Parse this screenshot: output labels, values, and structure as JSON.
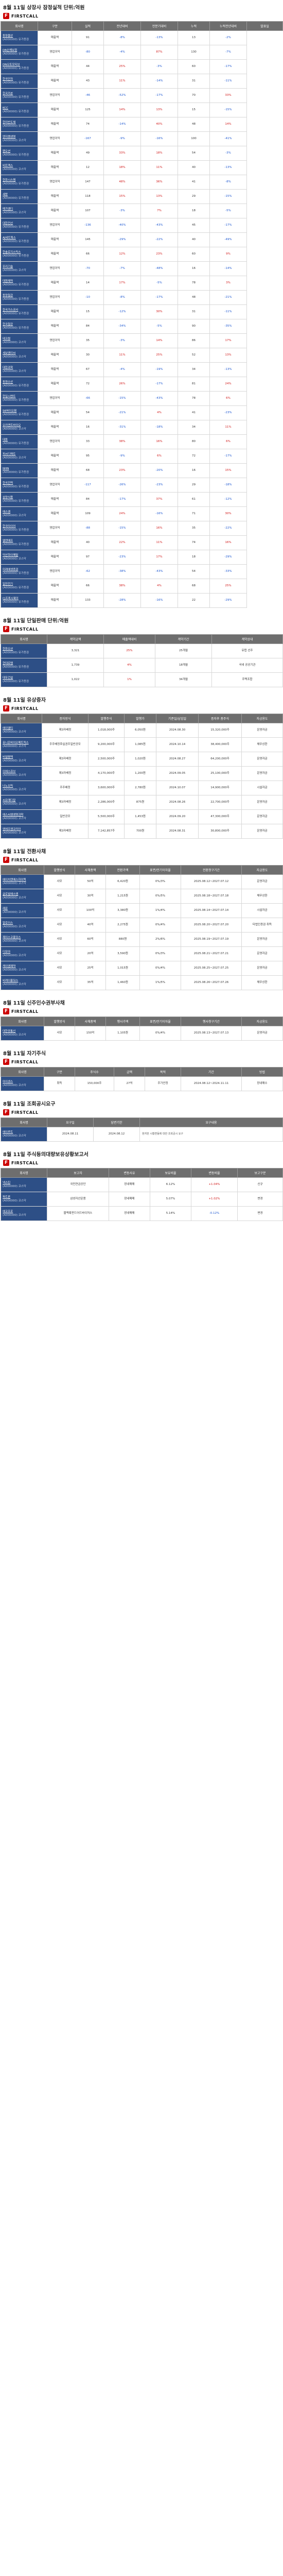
{
  "brand": "FIRSTCALL",
  "sec1": {
    "title": "8월 11일 상장사 잠정실적 단위:억원",
    "headers": [
      "회사명",
      "구분",
      "실적",
      "전년대비",
      "전분기대비",
      "누적",
      "누적전년대비",
      "발표일"
    ],
    "rows": [
      [
        "동양물산",
        "(A000000) 유가증권",
        "매출액",
        "91",
        "-8%",
        "-13%",
        "13",
        "-2%"
      ],
      [
        "DB손해보험",
        "(A000000) 유가증권",
        "영업이익",
        "-80",
        "-4%",
        "87%",
        "130",
        "-7%"
      ],
      [
        "DN오토모티브",
        "(A000000) 유가증권",
        "매출액",
        "44",
        "25%",
        "-3%",
        "60",
        "-17%"
      ],
      [
        "한국단자",
        "(A000000) 유가증권",
        "매출액",
        "43",
        "11%",
        "-14%",
        "31",
        "-11%"
      ],
      [
        "한국카본",
        "(A000000) 유가증권",
        "영업이익",
        "-46",
        "-52%",
        "-17%",
        "70",
        "33%"
      ],
      [
        "KCC",
        "(A000000) 유가증권",
        "매출액",
        "125",
        "14%",
        "13%",
        "15",
        "-15%"
      ],
      [
        "한미반도체",
        "(A000000) 유가증권",
        "매출액",
        "74",
        "-14%",
        "40%",
        "48",
        "14%"
      ],
      [
        "엔지켐생명",
        "(A000000) 코스닥",
        "영업이익",
        "-167",
        "-9%",
        "-16%",
        "100",
        "-41%"
      ],
      [
        "팬오션",
        "(A000000) 유가증권",
        "매출액",
        "49",
        "33%",
        "18%",
        "54",
        "-3%"
      ],
      [
        "비트맥스",
        "(A000000) 코스닥",
        "매출액",
        "12",
        "18%",
        "11%",
        "40",
        "-13%"
      ],
      [
        "한화시스템",
        "(A000000) 유가증권",
        "영업이익",
        "147",
        "48%",
        "36%",
        "41",
        "-8%"
      ],
      [
        "세방",
        "(A000000) 유가증권",
        "매출액",
        "118",
        "15%",
        "13%",
        "29",
        "-15%"
      ],
      [
        "메가엠디",
        "(A000000) 코스닥",
        "매출액",
        "107",
        "-3%",
        "7%",
        "18",
        "-5%"
      ],
      [
        "대한전선",
        "(A000000) 유가증권",
        "영업이익",
        "-136",
        "-40%",
        "-43%",
        "45",
        "-17%"
      ],
      [
        "AJ네트웍스",
        "(A000000) 유가증권",
        "매출액",
        "145",
        "-29%",
        "-22%",
        "40",
        "-49%"
      ],
      [
        "한솔로지스틱스",
        "(A000000) 유가증권",
        "매출액",
        "66",
        "12%",
        "23%",
        "60",
        "9%"
      ],
      [
        "우리기술",
        "(A000000) 코스닥",
        "영업이익",
        "-70",
        "-7%",
        "-48%",
        "16",
        "-14%"
      ],
      [
        "대원제약",
        "(A000000) 유가증권",
        "매출액",
        "14",
        "17%",
        "-5%",
        "78",
        "3%"
      ],
      [
        "동양철관",
        "(A000000) 유가증권",
        "영업이익",
        "-10",
        "-8%",
        "-17%",
        "48",
        "-21%"
      ],
      [
        "한국가스공사",
        "(A000000) 유가증권",
        "매출액",
        "15",
        "-12%",
        "30%",
        "31",
        "-11%"
      ],
      [
        "한국철강",
        "(A000000) 유가증권",
        "매출액",
        "84",
        "-34%",
        "-5%",
        "90",
        "-35%"
      ],
      [
        "테크윙",
        "(A000000) 코스닥",
        "영업이익",
        "35",
        "-3%",
        "14%",
        "86",
        "17%"
      ],
      [
        "세보엠이씨",
        "(A000000) 코스닥",
        "매출액",
        "30",
        "11%",
        "25%",
        "52",
        "13%"
      ],
      [
        "대한과학",
        "(A000000) 코스닥",
        "매출액",
        "67",
        "-4%",
        "-19%",
        "34",
        "-13%"
      ],
      [
        "동원수산",
        "(A000000) 유가증권",
        "매출액",
        "72",
        "26%",
        "-17%",
        "81",
        "24%"
      ],
      [
        "한일시멘트",
        "(A000000) 유가증권",
        "영업이익",
        "-66",
        "-15%",
        "-43%",
        "78",
        "6%"
      ],
      [
        "SK바이오팜",
        "(A000000) 유가증권",
        "매출액",
        "54",
        "-21%",
        "4%",
        "41",
        "-23%"
      ],
      [
        "오리엔트바이오",
        "(A000000) 코스닥",
        "매출액",
        "16",
        "-31%",
        "-18%",
        "34",
        "11%"
      ],
      [
        "대동",
        "(A000000) 유가증권",
        "영업이익",
        "33",
        "38%",
        "16%",
        "80",
        "6%"
      ],
      [
        "피씨디렉트",
        "(A000000) 코스닥",
        "매출액",
        "95",
        "-9%",
        "6%",
        "72",
        "-17%"
      ],
      [
        "NHN",
        "(A000000) 유가증권",
        "매출액",
        "68",
        "23%",
        "-20%",
        "16",
        "15%"
      ],
      [
        "한국전력",
        "(A000000) 유가증권",
        "영업이익",
        "-117",
        "-26%",
        "-23%",
        "29",
        "-18%"
      ],
      [
        "삼양식품",
        "(A000000) 유가증권",
        "매출액",
        "84",
        "-17%",
        "37%",
        "61",
        "-12%"
      ],
      [
        "에스엠",
        "(A000000) 코스닥",
        "매출액",
        "109",
        "24%",
        "-16%",
        "71",
        "30%"
      ],
      [
        "한국타이어",
        "(A000000) 유가증권",
        "영업이익",
        "-88",
        "-15%",
        "16%",
        "35",
        "-22%"
      ],
      [
        "엘앤에프",
        "(A000000) 유가증권",
        "매출액",
        "40",
        "22%",
        "11%",
        "74",
        "16%"
      ],
      [
        "덕산하이메탈",
        "(A000000) 코스닥",
        "매출액",
        "97",
        "-23%",
        "17%",
        "18",
        "-29%"
      ],
      [
        "미래에셋증권",
        "(A000000) 유가증권",
        "영업이익",
        "-62",
        "-38%",
        "-43%",
        "54",
        "-33%"
      ],
      [
        "일진전기",
        "(A000000) 유가증권",
        "매출액",
        "66",
        "38%",
        "4%",
        "68",
        "25%"
      ],
      [
        "CJ프레시웨이",
        "(A000000) 유가증권",
        "매출액",
        "133",
        "-28%",
        "-16%",
        "22",
        "-29%"
      ]
    ]
  },
  "sec2": {
    "title": "8월 11일 단일판매 단위:억원",
    "headers": [
      "회사명",
      "계약금액",
      "매출액대비",
      "계약기간",
      "계약상대"
    ],
    "rows": [
      [
        "한화오션",
        "(A000000) 유가증권",
        "3,321",
        "25%",
        "25개월",
        "유럽 선주"
      ],
      [
        "현대로템",
        "(A000000) 유가증권",
        "1,739",
        "4%",
        "18개월",
        "국내 공공기관"
      ],
      [
        "대우건설",
        "(A000000) 유가증권",
        "1,022",
        "1%",
        "34개월",
        "주택조합"
      ]
    ]
  },
  "sec3": {
    "title": "8월 11일 유상증자",
    "headers": [
      "회사명",
      "증자방식",
      "발행주식",
      "발행가",
      "기준일/납입일",
      "증자후 총주식",
      "자금용도"
    ],
    "rows": [
      [
        "에이엘티",
        "(A000000) 코스닥",
        "제3자배정",
        "1,018,000주",
        "6,050원",
        "2024.08.30",
        "15,320,000주",
        "운영자금"
      ],
      [
        "유니온바이오메트릭스",
        "(A000000) 코스닥",
        "주주배정후실권주일반공모",
        "9,200,000주",
        "1,085원",
        "2024.10.14",
        "38,400,000주",
        "채무상환"
      ],
      [
        "비엘팜텍",
        "(A000000) 코스닥",
        "제3자배정",
        "2,500,000주",
        "1,020원",
        "2024.08.27",
        "64,200,000주",
        "운영자금"
      ],
      [
        "이에스큐브",
        "(A000000) 코스닥",
        "제3자배정",
        "4,170,000주",
        "1,200원",
        "2024.09.05",
        "25,100,000주",
        "운영자금"
      ],
      [
        "나노브릭",
        "(A000000) 코스닥",
        "주주배정",
        "3,600,000주",
        "2,780원",
        "2024.10.07",
        "14,900,000주",
        "시설자금"
      ],
      [
        "씨유메디칼",
        "(A000000) 코스닥",
        "제3자배정",
        "2,286,000주",
        "875원",
        "2024.08.26",
        "22,700,000주",
        "운영자금"
      ],
      [
        "에스씨엠생명과학",
        "(A000000) 코스닥",
        "일반공모",
        "5,500,000주",
        "1,453원",
        "2024.09.20",
        "47,300,000주",
        "운영자금"
      ],
      [
        "엠에프엠코리아",
        "(A000000) 코스닥",
        "제3자배정",
        "7,142,857주",
        "700원",
        "2024.08.31",
        "30,800,000주",
        "운영자금"
      ]
    ]
  },
  "sec4": {
    "title": "8월 11일 전환사채",
    "headers": [
      "회사명",
      "발행방식",
      "사채총액",
      "전환가액",
      "표면/만기이자율",
      "전환청구기간",
      "자금용도"
    ],
    "rows": [
      [
        "에이치엔에스하이텍",
        "(A000000) 코스닥",
        "사모",
        "50억",
        "6,420원",
        "0%/3%",
        "2025.08.12~2027.07.12",
        "운영자금"
      ],
      [
        "글로벌에스엠",
        "(A000000) 코스닥",
        "사모",
        "30억",
        "1,215원",
        "0%/5%",
        "2025.08.18~2027.07.18",
        "채무상환"
      ],
      [
        "레몬",
        "(A000000) 코스닥",
        "사모",
        "100억",
        "3,380원",
        "1%/4%",
        "2025.08.14~2027.07.14",
        "시설자금"
      ],
      [
        "알로이스",
        "(A000000) 코스닥",
        "사모",
        "40억",
        "2,275원",
        "0%/4%",
        "2025.08.20~2027.07.20",
        "타법인증권 취득"
      ],
      [
        "제이스코홀딩스",
        "(A000000) 코스닥",
        "사모",
        "60억",
        "880원",
        "2%/6%",
        "2025.08.19~2027.07.19",
        "운영자금"
      ],
      [
        "디모아",
        "(A000000) 코스닥",
        "사모",
        "20억",
        "3,590원",
        "0%/3%",
        "2025.08.21~2027.07.21",
        "운영자금"
      ],
      [
        "케이엠제약",
        "(A000000) 코스닥",
        "사모",
        "25억",
        "1,015원",
        "0%/4%",
        "2025.08.25~2027.07.25",
        "운영자금"
      ],
      [
        "비케이홀딩스",
        "(A000000) 코스닥",
        "사모",
        "35억",
        "1,460원",
        "1%/5%",
        "2025.08.26~2027.07.26",
        "채무상환"
      ]
    ]
  },
  "sec5": {
    "title": "8월 11일 신주인수권부사채",
    "headers": [
      "회사명",
      "발행방식",
      "사채총액",
      "행사가액",
      "표면/만기이자율",
      "행사청구기간",
      "자금용도"
    ],
    "rows": [
      [
        "대한광통신",
        "(A000000) 코스닥",
        "사모",
        "150억",
        "1,105원",
        "0%/4%",
        "2025.08.13~2027.07.13",
        "운영자금"
      ]
    ]
  },
  "sec6": {
    "title": "8월 11일 자기주식",
    "headers": [
      "회사명",
      "구분",
      "주식수",
      "금액",
      "목적",
      "기간",
      "방법"
    ],
    "rows": [
      [
        "아이센스",
        "(A000000) 코스닥",
        "취득",
        "150,000주",
        "27억",
        "주가안정",
        "2024.08.12~2024.11.11",
        "장내매수"
      ]
    ]
  },
  "sec7": {
    "title": "8월 11일 조회공시요구",
    "headers": [
      "회사명",
      "요구일",
      "답변기한",
      "요구내용"
    ],
    "rows": [
      [
        "에이루트",
        "(A000000) 코스닥",
        "2024.08.11",
        "2024.08.12",
        "현저한 시황변동에 대한 조회공시 요구"
      ]
    ]
  },
  "sec8": {
    "title": "8월 11일 주식등의대량보유상황보고서",
    "headers": [
      "회사명",
      "보고자",
      "변동사유",
      "보유비율",
      "변동비율",
      "보고구분"
    ],
    "rows": [
      [
        "넥스틴",
        "(A000000) 코스닥",
        "국민연금공단",
        "장내매매",
        "6.12%",
        "+1.04%",
        "신규"
      ],
      [
        "파트론",
        "(A000000) 코스닥",
        "삼성자산운용",
        "장내매매",
        "5.07%",
        "+1.02%",
        "변경"
      ],
      [
        "에코프로",
        "(A000000) 코스닥",
        "블랙록펀드어드바이저스",
        "장내매매",
        "5.14%",
        "-0.12%",
        "변경"
      ]
    ]
  }
}
